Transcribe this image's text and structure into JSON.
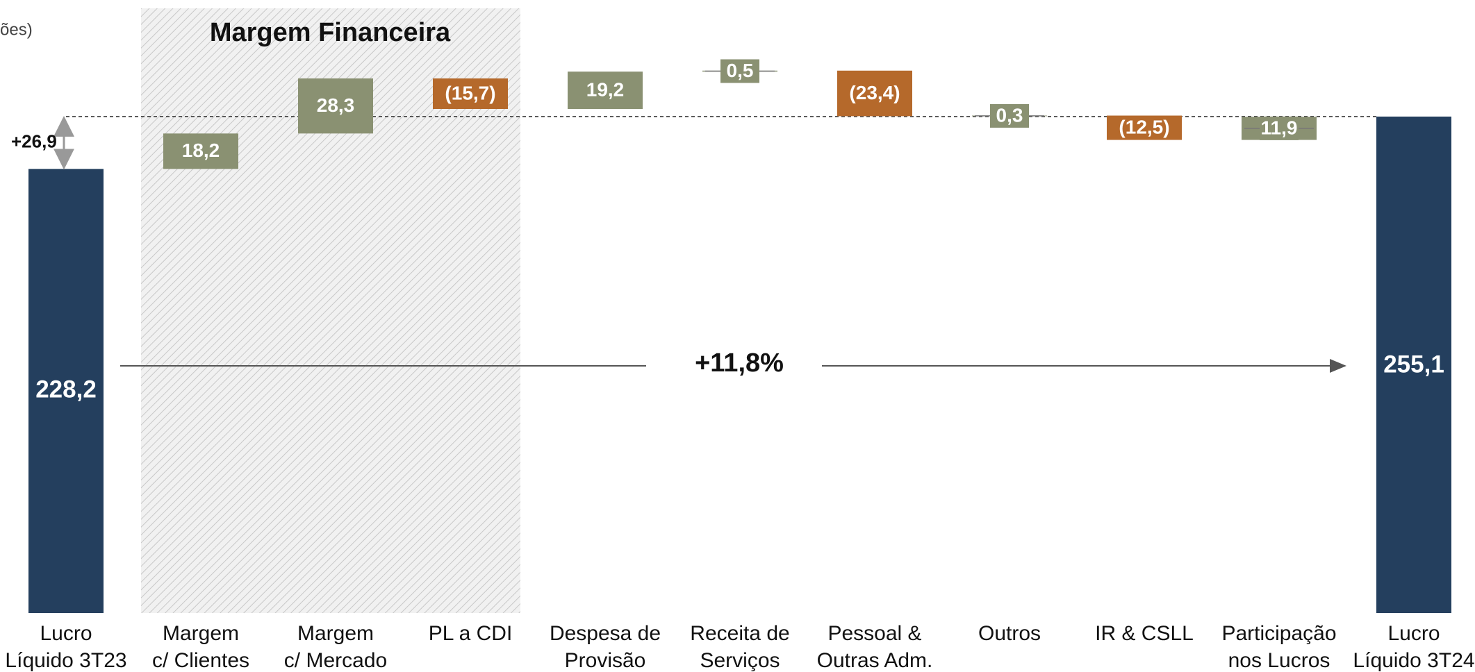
{
  "chart_data": {
    "type": "waterfall",
    "subtitle": "ões)",
    "categories": [
      "Lucro\nLíquido 3T23",
      "Margem\nc/ Clientes",
      "Margem\nc/ Mercado",
      "PL a CDI",
      "Despesa de\nProvisão",
      "Receita de\nServiços",
      "Pessoal &\nOutras Adm.",
      "Outros",
      "IR & CSLL",
      "Participação\nnos Lucros",
      "Lucro\nLíquido 3T24"
    ],
    "values": [
      228.2,
      18.2,
      28.3,
      -15.7,
      19.2,
      0.5,
      -23.4,
      0.3,
      -12.5,
      11.9,
      255.1
    ],
    "value_labels": [
      "228,2",
      "18,2",
      "28,3",
      "(15,7)",
      "19,2",
      "0,5",
      "(23,4)",
      "0,3",
      "(12,5)",
      "11,9",
      "255,1"
    ],
    "measure": [
      "absolute",
      "relative",
      "relative",
      "relative",
      "relative",
      "relative",
      "relative",
      "relative",
      "relative",
      "relative",
      "total"
    ],
    "colors": [
      "#243f5e",
      "#8a9172",
      "#8a9172",
      "#b5692b",
      "#8a9172",
      "#8a9172",
      "#b5692b",
      "#8a9172",
      "#b5692b",
      "#8a9172",
      "#243f5e"
    ],
    "ylim": [
      0,
      315
    ],
    "annotations": {
      "group": "Margem Financeira",
      "growth": "+11,8%",
      "difference": "+26,9"
    }
  }
}
